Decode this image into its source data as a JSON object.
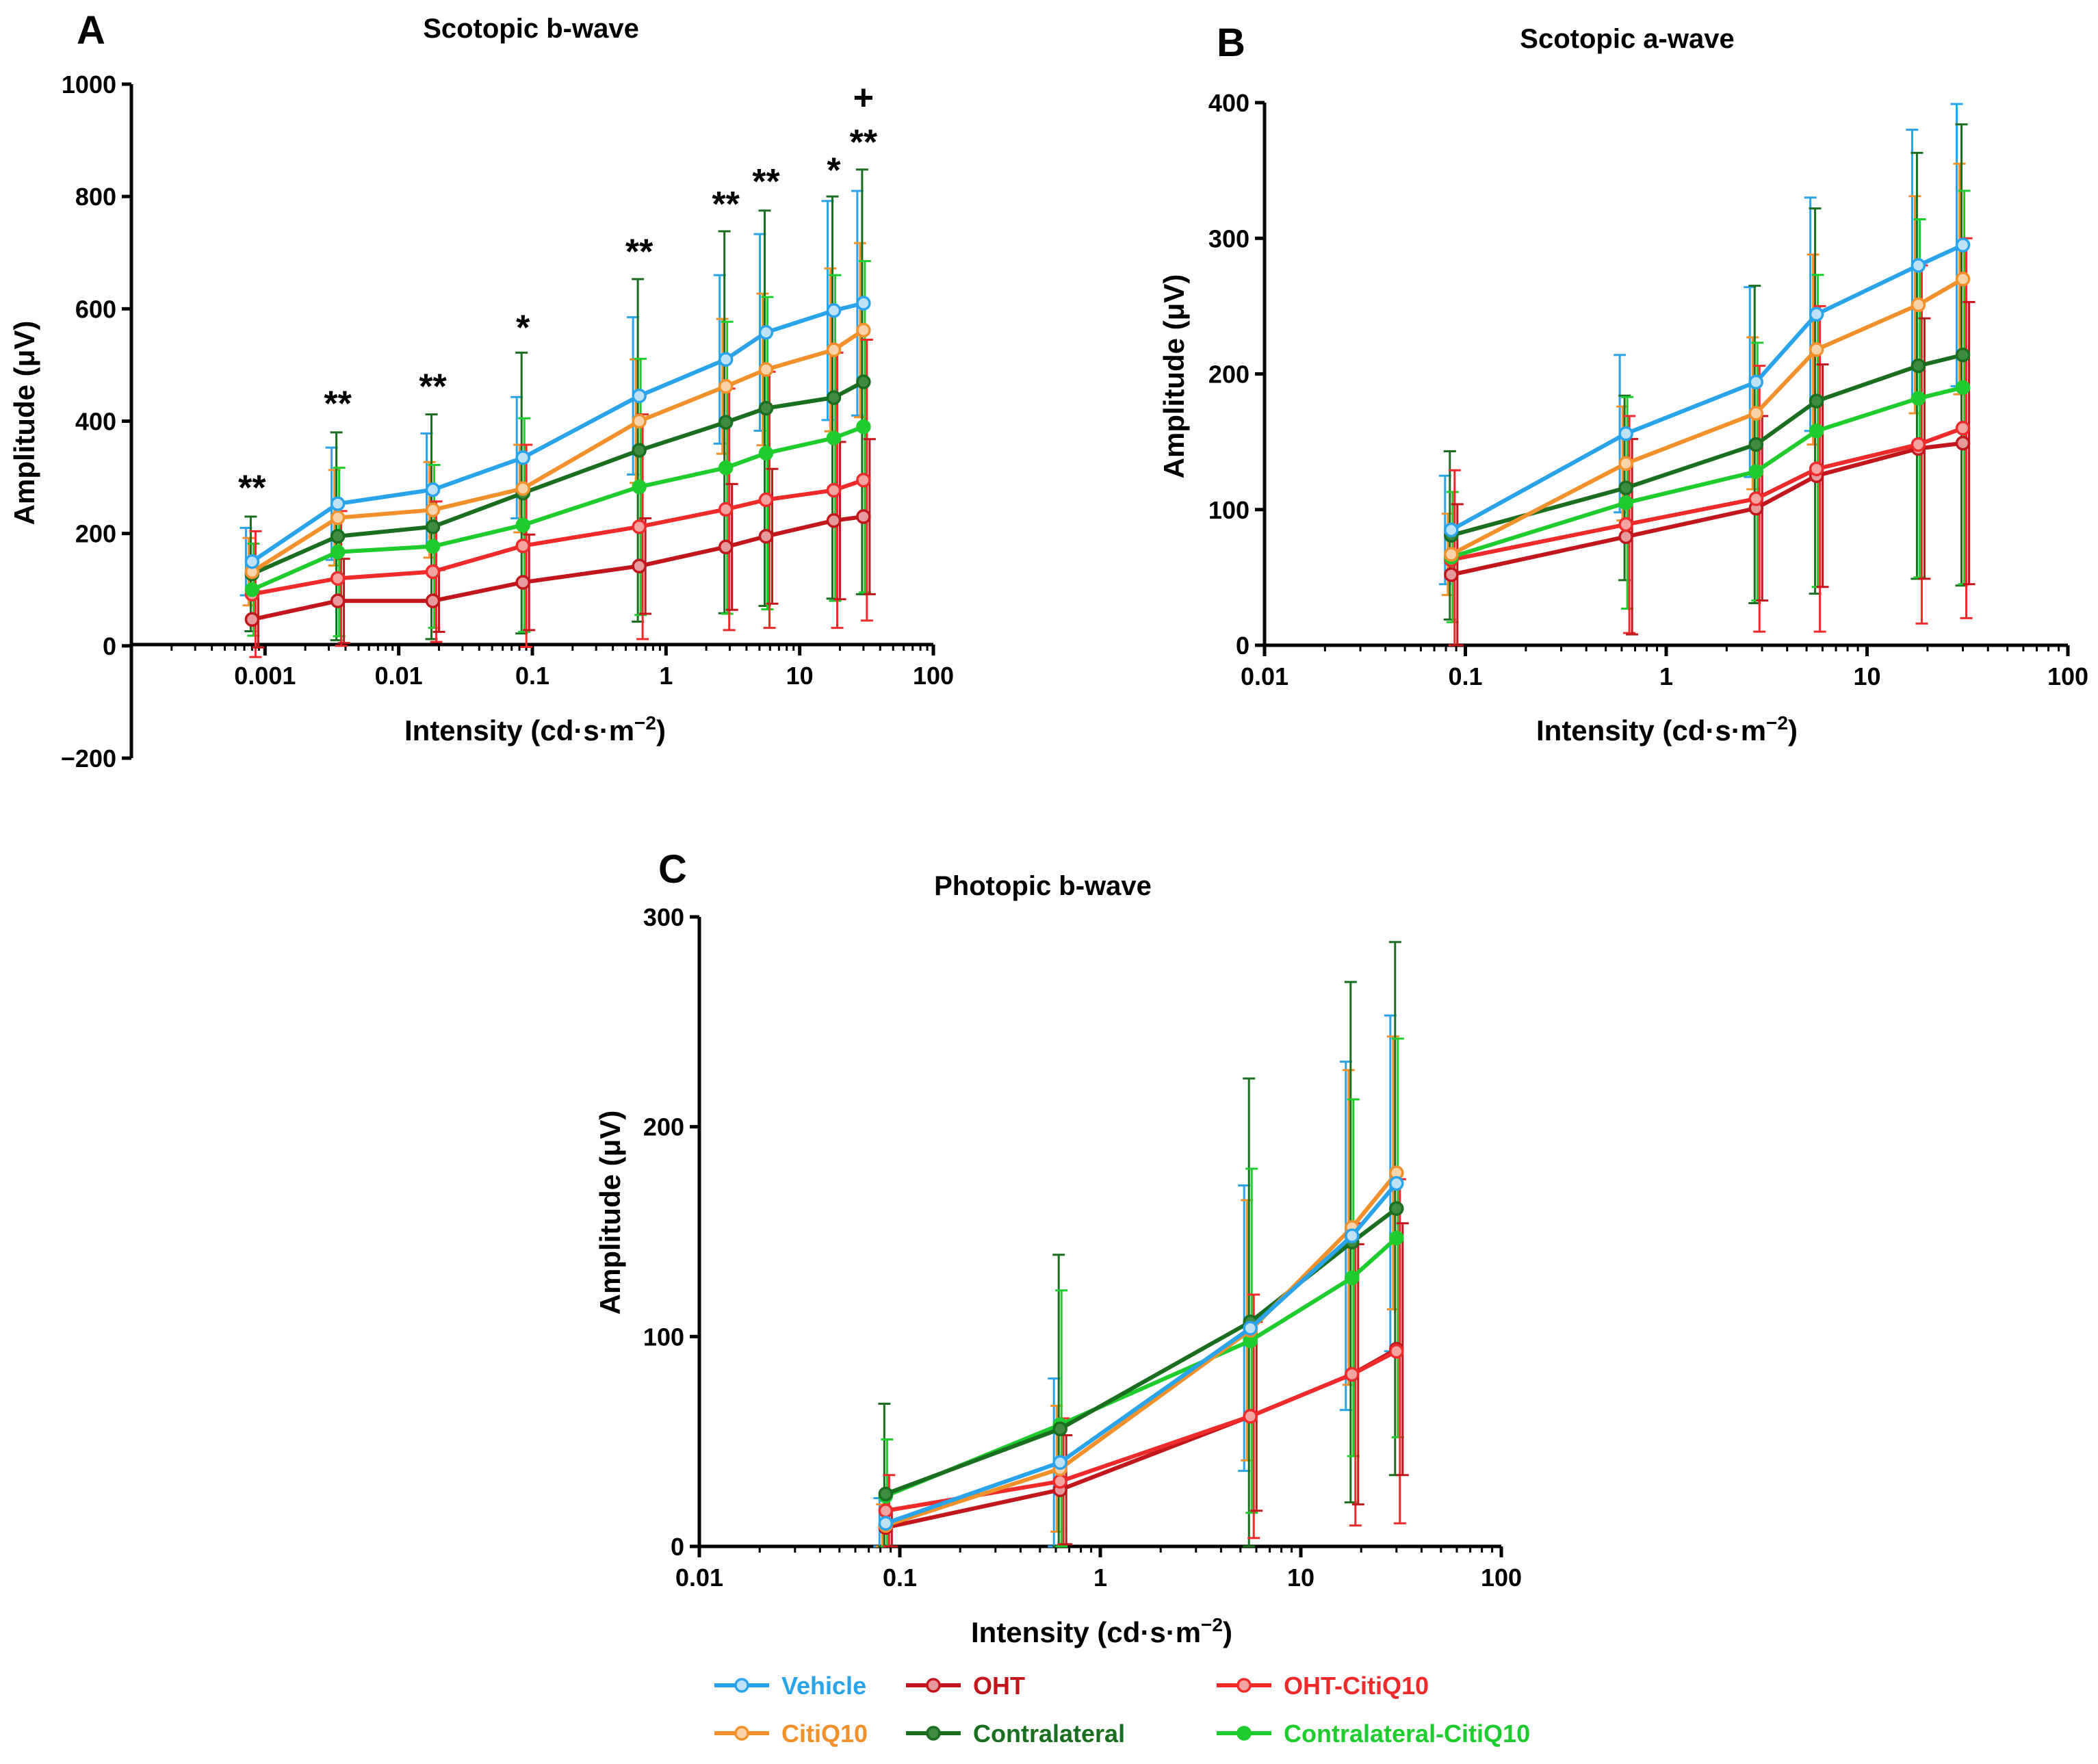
{
  "colors": {
    "Vehicle": "#29a3ea",
    "CitiQ10": "#f2912b",
    "OHT": "#c0161c",
    "Contralateral": "#1a6e1f",
    "OHT-CitiQ10": "#ee2a2a",
    "Contralateral-CitiQ10": "#1fcc2d"
  },
  "legend": {
    "items": [
      {
        "name": "Vehicle",
        "label": "Vehicle"
      },
      {
        "name": "OHT",
        "label": "OHT"
      },
      {
        "name": "OHT-CitiQ10",
        "label": "OHT-CitiQ10"
      },
      {
        "name": "CitiQ10",
        "label": "CitiQ10"
      },
      {
        "name": "Contralateral",
        "label": "Contralateral"
      },
      {
        "name": "Contralateral-CitiQ10",
        "label": "Contralateral-CitiQ10"
      }
    ]
  },
  "chart_data": [
    {
      "id": "A",
      "letter": "A",
      "type": "line",
      "title": "Scotopic b-wave",
      "xlabel": "Intensity (cd·s·m",
      "xlabel_sup": "−2",
      "xlabel_close": ")",
      "ylabel": "Amplitude (μV)",
      "xscale": "log",
      "xlim": [
        0.0001,
        100
      ],
      "ylim": [
        -200,
        1000
      ],
      "xticks": [
        0.001,
        0.01,
        0.1,
        1,
        10,
        100
      ],
      "xtick_labels": [
        "0.001",
        "0.01",
        "0.1",
        "1",
        "10",
        "100"
      ],
      "yticks": [
        -200,
        0,
        200,
        400,
        600,
        800,
        1000
      ],
      "ytick_labels": [
        "−200",
        "0",
        "200",
        "400",
        "600",
        "800",
        "1000"
      ],
      "x": [
        0.0008,
        0.0035,
        0.018,
        0.085,
        0.63,
        2.8,
        5.6,
        18,
        30
      ],
      "series": [
        {
          "name": "Vehicle",
          "values": [
            150,
            253,
            278,
            335,
            445,
            510,
            558,
            597,
            610
          ],
          "error": [
            60,
            100,
            100,
            108,
            140,
            150,
            175,
            195,
            200
          ]
        },
        {
          "name": "CitiQ10",
          "values": [
            132,
            228,
            242,
            280,
            400,
            462,
            492,
            527,
            562
          ],
          "error": [
            60,
            85,
            85,
            78,
            110,
            120,
            135,
            145,
            155
          ]
        },
        {
          "name": "Contralateral",
          "values": [
            128,
            195,
            212,
            272,
            348,
            398,
            423,
            442,
            470
          ],
          "error": [
            102,
            185,
            200,
            250,
            305,
            340,
            352,
            358,
            378
          ]
        },
        {
          "name": "Contralateral-CitiQ10",
          "values": [
            100,
            167,
            177,
            215,
            283,
            317,
            343,
            370,
            390
          ],
          "error": [
            82,
            150,
            145,
            190,
            228,
            260,
            278,
            290,
            295
          ]
        },
        {
          "name": "OHT-CitiQ10",
          "values": [
            92,
            120,
            132,
            178,
            212,
            243,
            260,
            277,
            295
          ],
          "error": [
            112,
            120,
            125,
            180,
            200,
            215,
            228,
            245,
            250
          ]
        },
        {
          "name": "OHT",
          "values": [
            47,
            80,
            80,
            113,
            142,
            176,
            195,
            223,
            230
          ],
          "error": [
            50,
            75,
            55,
            85,
            85,
            112,
            120,
            140,
            138
          ]
        }
      ],
      "annotations": [
        {
          "x": 0.0008,
          "y": 260,
          "text": "**"
        },
        {
          "x": 0.0035,
          "y": 410,
          "text": "**"
        },
        {
          "x": 0.018,
          "y": 440,
          "text": "**"
        },
        {
          "x": 0.085,
          "y": 545,
          "text": "*"
        },
        {
          "x": 0.63,
          "y": 680,
          "text": "**"
        },
        {
          "x": 2.8,
          "y": 765,
          "text": "**"
        },
        {
          "x": 5.6,
          "y": 805,
          "text": "**"
        },
        {
          "x": 18,
          "y": 825,
          "text": "*"
        },
        {
          "x": 30,
          "y": 875,
          "text": "**"
        },
        {
          "x": 30,
          "y": 955,
          "text": "+"
        }
      ]
    },
    {
      "id": "B",
      "letter": "B",
      "type": "line",
      "title": "Scotopic a-wave",
      "xlabel": "Intensity (cd·s·m",
      "xlabel_sup": "−2",
      "xlabel_close": ")",
      "ylabel": "Amplitude (μV)",
      "xscale": "log",
      "xlim": [
        0.01,
        100
      ],
      "ylim": [
        0,
        400
      ],
      "xticks": [
        0.01,
        0.1,
        1,
        10,
        100
      ],
      "xtick_labels": [
        "0.01",
        "0.1",
        "1",
        "10",
        "100"
      ],
      "yticks": [
        0,
        100,
        200,
        300,
        400
      ],
      "ytick_labels": [
        "0",
        "100",
        "200",
        "300",
        "400"
      ],
      "x": [
        0.085,
        0.63,
        2.8,
        5.6,
        18,
        30
      ],
      "series": [
        {
          "name": "Vehicle",
          "values": [
            85,
            156,
            194,
            244,
            280,
            295
          ],
          "error": [
            40,
            58,
            70,
            86,
            100,
            104
          ]
        },
        {
          "name": "CitiQ10",
          "values": [
            67,
            134,
            171,
            218,
            251,
            270
          ],
          "error": [
            30,
            42,
            56,
            70,
            80,
            85
          ]
        },
        {
          "name": "Contralateral",
          "values": [
            81,
            116,
            148,
            180,
            206,
            214
          ],
          "error": [
            62,
            68,
            117,
            142,
            157,
            170
          ]
        },
        {
          "name": "Contralateral-CitiQ10",
          "values": [
            65,
            105,
            128,
            158,
            182,
            190
          ],
          "error": [
            48,
            78,
            95,
            115,
            132,
            145
          ]
        },
        {
          "name": "OHT-CitiQ10",
          "values": [
            63,
            89,
            108,
            130,
            148,
            160
          ],
          "error": [
            66,
            80,
            98,
            120,
            132,
            140
          ]
        },
        {
          "name": "OHT",
          "values": [
            52,
            80,
            101,
            125,
            145,
            149
          ],
          "error": [
            52,
            72,
            68,
            82,
            96,
            104
          ]
        }
      ]
    },
    {
      "id": "C",
      "letter": "C",
      "type": "line",
      "title": "Photopic b-wave",
      "xlabel": "Intensity (cd·s·m",
      "xlabel_sup": "−2",
      "xlabel_close": ")",
      "ylabel": "Amplitude (μV)",
      "xscale": "log",
      "xlim": [
        0.01,
        100
      ],
      "ylim": [
        0,
        300
      ],
      "xticks": [
        0.01,
        0.1,
        1,
        10,
        100
      ],
      "xtick_labels": [
        "0.01",
        "0.1",
        "1",
        "10",
        "100"
      ],
      "yticks": [
        0,
        100,
        200,
        300
      ],
      "ytick_labels": [
        "0",
        "100",
        "200",
        "300"
      ],
      "x": [
        0.085,
        0.63,
        5.6,
        18,
        30
      ],
      "series": [
        {
          "name": "Vehicle",
          "values": [
            11,
            40,
            104,
            148,
            173
          ],
          "error": [
            12,
            40,
            68,
            83,
            80
          ]
        },
        {
          "name": "CitiQ10",
          "values": [
            10,
            37,
            103,
            152,
            178
          ],
          "error": [
            10,
            30,
            62,
            75,
            65
          ]
        },
        {
          "name": "Contralateral",
          "values": [
            25,
            56,
            107,
            145,
            161
          ],
          "error": [
            43,
            83,
            116,
            124,
            127
          ]
        },
        {
          "name": "Contralateral-CitiQ10",
          "values": [
            24,
            58,
            98,
            128,
            147
          ],
          "error": [
            27,
            64,
            82,
            85,
            95
          ]
        },
        {
          "name": "OHT-CitiQ10",
          "values": [
            17,
            31,
            62,
            82,
            93
          ],
          "error": [
            17,
            30,
            58,
            72,
            82
          ]
        },
        {
          "name": "OHT",
          "values": [
            9,
            27,
            62,
            82,
            94
          ],
          "error": [
            9,
            26,
            45,
            62,
            60
          ]
        }
      ]
    }
  ]
}
